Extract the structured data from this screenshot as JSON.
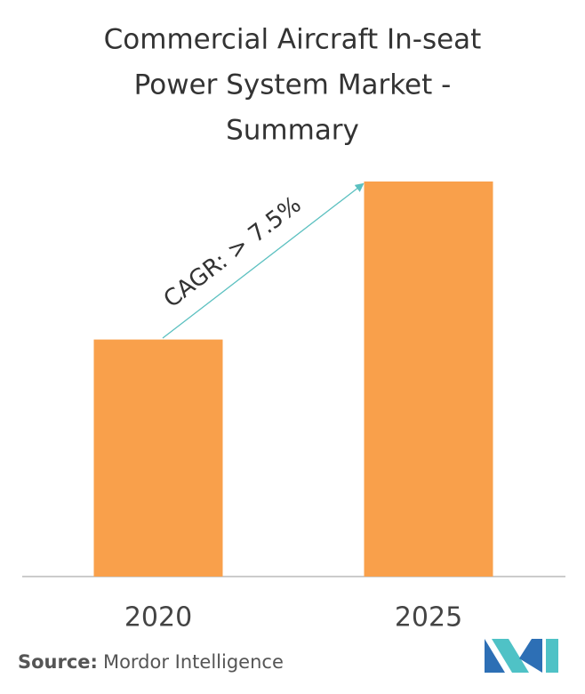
{
  "chart_data": {
    "type": "bar",
    "title": [
      "Commercial Aircraft In-seat",
      "Power System Market -",
      "Summary"
    ],
    "categories": [
      "2020",
      "2025"
    ],
    "values": [
      60,
      100
    ],
    "color": "#f9a04b",
    "annotation": "CAGR: > 7.5%",
    "source_label": "Source:",
    "source": "Mordor Intelligence"
  }
}
